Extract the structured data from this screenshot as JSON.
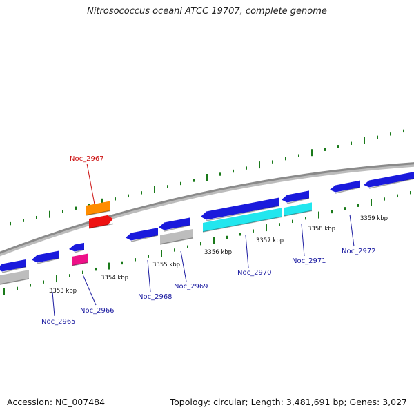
{
  "title": "Nitrosococcus oceani ATCC 19707, complete genome",
  "footer": {
    "accession": "Accession: NC_007484",
    "topology": "Topology: circular; Length: 3,481,691 bp; Genes: 3,027"
  },
  "colors": {
    "backbone": "#8a8a8a",
    "tick_major": "#1a7a1a",
    "tick_minor": "#1a7a1a",
    "gene_blue": "#1a1adc",
    "gene_cyan": "#22e6ee",
    "gene_gray": "#bdbdbd",
    "gene_orange": "#ff8c00",
    "gene_red": "#ee1111",
    "gene_magenta": "#ee1188",
    "label_blue": "#1a1aa0",
    "label_red": "#cc1111"
  },
  "scale_labels": [
    "3353 kbp",
    "3354 kbp",
    "3355 kbp",
    "3356 kbp",
    "3357 kbp",
    "3358 kbp",
    "3359 kbp"
  ],
  "gene_labels": [
    {
      "text": "Noc_2965",
      "color": "label_blue"
    },
    {
      "text": "Noc_2966",
      "color": "label_blue"
    },
    {
      "text": "Noc_2967",
      "color": "label_red"
    },
    {
      "text": "Noc_2968",
      "color": "label_blue"
    },
    {
      "text": "Noc_2969",
      "color": "label_blue"
    },
    {
      "text": "Noc_2970",
      "color": "label_blue"
    },
    {
      "text": "Noc_2971",
      "color": "label_blue"
    },
    {
      "text": "Noc_2972",
      "color": "label_blue"
    }
  ]
}
